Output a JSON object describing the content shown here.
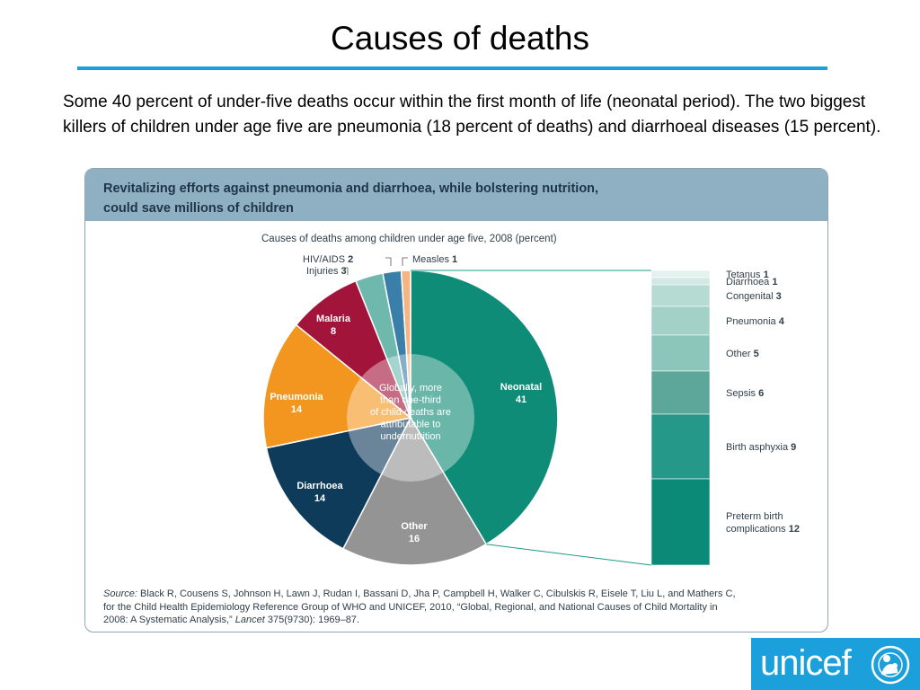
{
  "slide": {
    "title": "Causes of deaths",
    "intro": "Some 40 percent of under-five deaths occur within the first month of life (neonatal period). The two biggest killers of children under age five are pneumonia (18 percent of deaths) and diarrhoeal diseases (15 percent)."
  },
  "panel": {
    "headline_line1": "Revitalizing efforts against pneumonia and diarrhoea, while bolstering nutrition,",
    "headline_line2": "could save millions of children",
    "center_note_lines": [
      "Globally, more",
      "than one-third",
      "of child deaths are",
      "attributable to",
      "undernutrition"
    ],
    "source_prefix": "Source:",
    "source_line1": " Black R, Cousens S, Johnson H, Lawn J, Rudan I, Bassani D, Jha P, Campbell H, Walker C, Cibulskis R, Eisele T, Liu L, and Mathers C,",
    "source_line2": "for the Child Health Epidemiology Reference Group of WHO and UNICEF, 2010, “Global, Regional, and National Causes of Child Mortality in",
    "source_line3_a": "2008: A Systematic Analysis,” ",
    "source_journal": "Lancet",
    "source_line3_b": " 375(9730): 1969–87."
  },
  "logo": {
    "text": "unicef"
  },
  "colors": {
    "accent_rule": "#1ba0dc",
    "header_band": "#8fb0c3",
    "neonatal": "#0f8c77",
    "other": "#949494",
    "diarrhoea": "#0f3b5b",
    "pneumonia": "#f3961f",
    "malaria": "#a3143a",
    "injuries": "#6fb8ae",
    "hiv_aids": "#3a7eaa",
    "measles": "#f4b483"
  },
  "chart_data": [
    {
      "type": "pie",
      "title": "Causes of deaths among children under age five, 2008 (percent)",
      "slices": [
        {
          "label": "Neonatal",
          "value": 41,
          "color": "#0f8c77",
          "label_placement": "inside"
        },
        {
          "label": "Other",
          "value": 16,
          "color": "#949494",
          "label_placement": "inside"
        },
        {
          "label": "Diarrhoea",
          "value": 14,
          "color": "#0f3b5b",
          "label_placement": "inside"
        },
        {
          "label": "Pneumonia",
          "value": 14,
          "color": "#f3961f",
          "label_placement": "inside"
        },
        {
          "label": "Malaria",
          "value": 8,
          "color": "#a3143a",
          "label_placement": "inside"
        },
        {
          "label": "Injuries",
          "value": 3,
          "color": "#6fb8ae",
          "label_placement": "outside"
        },
        {
          "label": "HIV/AIDS",
          "value": 2,
          "color": "#3a7eaa",
          "label_placement": "outside"
        },
        {
          "label": "Measles",
          "value": 1,
          "color": "#f4b483",
          "label_placement": "outside"
        }
      ]
    },
    {
      "type": "bar",
      "orientation": "stacked-column",
      "breakdown_of": "Neonatal",
      "segments": [
        {
          "label": "Tetanus",
          "value": 1,
          "color": "#e4f1ee"
        },
        {
          "label": "Diarrhoea",
          "value": 1,
          "color": "#d1e8e3"
        },
        {
          "label": "Congenital",
          "value": 3,
          "color": "#b6dbd3"
        },
        {
          "label": "Pneumonia",
          "value": 4,
          "color": "#a3d1c8"
        },
        {
          "label": "Other",
          "value": 5,
          "color": "#8cc6bb"
        },
        {
          "label": "Sepsis",
          "value": 6,
          "color": "#5ca799"
        },
        {
          "label": "Birth asphyxia",
          "value": 9,
          "color": "#25988a"
        },
        {
          "label": "Preterm birth complications",
          "label_lines": [
            "Preterm birth",
            "complications"
          ],
          "value": 12,
          "color": "#0a8a77"
        }
      ]
    }
  ]
}
